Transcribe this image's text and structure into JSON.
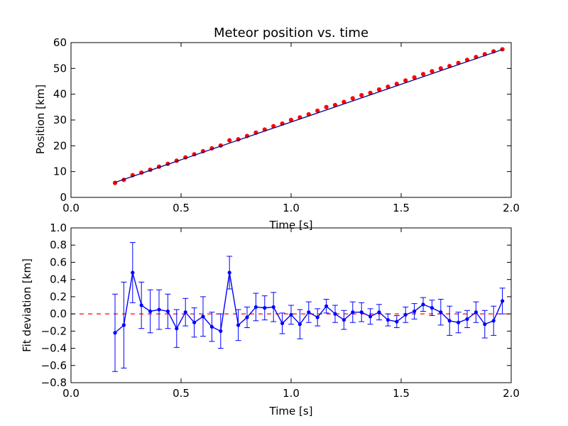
{
  "chart_data": [
    {
      "type": "line",
      "title": "Meteor position vs. time",
      "xlabel": "Time [s]",
      "ylabel": "Position [km]",
      "xlim": [
        0.0,
        2.0
      ],
      "ylim": [
        0,
        60
      ],
      "xticks": [
        "0.0",
        "0.5",
        "1.0",
        "1.5",
        "2.0"
      ],
      "yticks": [
        "0",
        "10",
        "20",
        "30",
        "40",
        "50",
        "60"
      ],
      "grid": false,
      "legend": "none",
      "series": [
        {
          "kind": "points",
          "color": "#ff0000",
          "marker": "dot",
          "x": [
            0.2,
            0.24,
            0.28,
            0.32,
            0.36,
            0.4,
            0.44,
            0.48,
            0.52,
            0.56,
            0.6,
            0.64,
            0.68,
            0.72,
            0.76,
            0.8,
            0.84,
            0.88,
            0.92,
            0.96,
            1.0,
            1.04,
            1.08,
            1.12,
            1.16,
            1.2,
            1.24,
            1.28,
            1.32,
            1.36,
            1.4,
            1.44,
            1.48,
            1.52,
            1.56,
            1.6,
            1.64,
            1.68,
            1.72,
            1.76,
            1.8,
            1.84,
            1.88,
            1.92,
            1.96
          ],
          "y": [
            5.6,
            6.8,
            8.6,
            9.6,
            10.7,
            11.9,
            13.0,
            14.2,
            15.5,
            16.7,
            17.9,
            19.0,
            20.1,
            22.1,
            22.5,
            23.8,
            25.1,
            26.3,
            27.6,
            28.6,
            30.0,
            31.0,
            32.2,
            33.6,
            35.0,
            35.8,
            37.0,
            38.4,
            39.6,
            40.5,
            41.8,
            42.9,
            44.0,
            45.3,
            46.5,
            47.8,
            48.9,
            50.0,
            50.9,
            52.1,
            53.3,
            54.4,
            55.5,
            56.6,
            57.4
          ]
        },
        {
          "kind": "fit-line",
          "color": "#000080",
          "x": [
            0.2,
            1.96
          ],
          "y": [
            5.8,
            57.3
          ]
        }
      ]
    },
    {
      "type": "line",
      "title": "",
      "xlabel": "Time [s]",
      "ylabel": "Fit deviation [km]",
      "xlim": [
        0.0,
        2.0
      ],
      "ylim": [
        -0.8,
        1.0
      ],
      "xticks": [
        "0.0",
        "0.5",
        "1.0",
        "1.5",
        "2.0"
      ],
      "yticks": [
        "−0.8",
        "−0.6",
        "−0.4",
        "−0.2",
        "0.0",
        "0.2",
        "0.4",
        "0.6",
        "0.8",
        "1.0"
      ],
      "grid": false,
      "legend": "none",
      "reference_line": {
        "y": 0.0,
        "color": "#ff0000",
        "style": "dashed"
      },
      "series": [
        {
          "kind": "line-with-errorbars",
          "color": "#0000ff",
          "marker": "dot",
          "x": [
            0.2,
            0.24,
            0.28,
            0.32,
            0.36,
            0.4,
            0.44,
            0.48,
            0.52,
            0.56,
            0.6,
            0.64,
            0.68,
            0.72,
            0.76,
            0.8,
            0.84,
            0.88,
            0.92,
            0.96,
            1.0,
            1.04,
            1.08,
            1.12,
            1.16,
            1.2,
            1.24,
            1.28,
            1.32,
            1.36,
            1.4,
            1.44,
            1.48,
            1.52,
            1.56,
            1.6,
            1.64,
            1.68,
            1.72,
            1.76,
            1.8,
            1.84,
            1.88,
            1.92,
            1.96
          ],
          "y": [
            -0.22,
            -0.13,
            0.48,
            0.1,
            0.03,
            0.05,
            0.03,
            -0.17,
            0.02,
            -0.1,
            -0.03,
            -0.15,
            -0.2,
            0.48,
            -0.13,
            -0.04,
            0.08,
            0.07,
            0.08,
            -0.11,
            -0.01,
            -0.12,
            0.02,
            -0.04,
            0.09,
            0.0,
            -0.07,
            0.02,
            0.02,
            -0.03,
            0.02,
            -0.07,
            -0.09,
            -0.01,
            0.03,
            0.11,
            0.07,
            0.02,
            -0.08,
            -0.1,
            -0.06,
            0.02,
            -0.12,
            -0.08,
            0.15
          ],
          "error": [
            0.45,
            0.5,
            0.35,
            0.27,
            0.25,
            0.23,
            0.2,
            0.22,
            0.16,
            0.17,
            0.23,
            0.17,
            0.2,
            0.19,
            0.18,
            0.12,
            0.16,
            0.14,
            0.17,
            0.12,
            0.11,
            0.17,
            0.12,
            0.1,
            0.08,
            0.1,
            0.11,
            0.12,
            0.11,
            0.09,
            0.09,
            0.07,
            0.07,
            0.09,
            0.09,
            0.08,
            0.09,
            0.15,
            0.17,
            0.12,
            0.1,
            0.12,
            0.16,
            0.17,
            0.15
          ]
        }
      ]
    }
  ]
}
